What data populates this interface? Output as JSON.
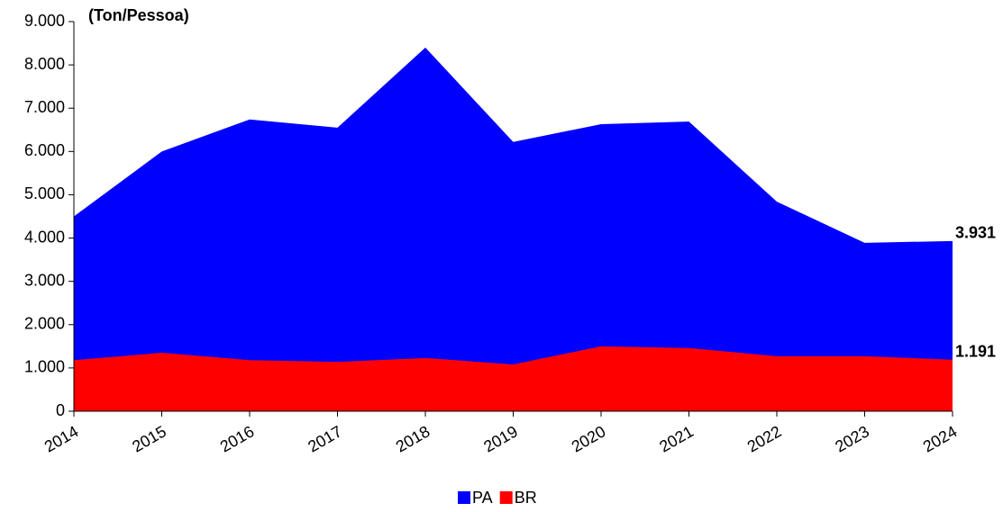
{
  "chart_data": {
    "type": "area",
    "y_axis_label": "(Ton/Pessoa)",
    "categories": [
      "2014",
      "2015",
      "2016",
      "2017",
      "2018",
      "2019",
      "2020",
      "2021",
      "2022",
      "2023",
      "2024"
    ],
    "series": [
      {
        "name": "PA",
        "color": "#0000ff",
        "values": [
          4500,
          6000,
          6740,
          6550,
          8400,
          6220,
          6630,
          6690,
          4840,
          3890,
          3931
        ],
        "value_labels": [
          null,
          null,
          null,
          null,
          null,
          null,
          null,
          null,
          null,
          null,
          "3.931"
        ]
      },
      {
        "name": "BR",
        "color": "#ff0000",
        "values": [
          1180,
          1350,
          1180,
          1140,
          1230,
          1080,
          1500,
          1460,
          1270,
          1270,
          1191
        ],
        "value_labels": [
          null,
          null,
          null,
          null,
          null,
          null,
          null,
          null,
          null,
          null,
          "1.191"
        ]
      }
    ],
    "ylim": [
      0,
      9000
    ],
    "yticks": [
      0,
      {
        "value": 1000,
        "label": "1.000"
      },
      {
        "value": 2000,
        "label": "2.000"
      },
      {
        "value": 3000,
        "label": "3.000"
      },
      {
        "value": 4000,
        "label": "4.000"
      },
      {
        "value": 5000,
        "label": "5.000"
      },
      {
        "value": 6000,
        "label": "6.000"
      },
      {
        "value": 7000,
        "label": "7.000"
      },
      {
        "value": 8000,
        "label": "8.000"
      },
      {
        "value": 9000,
        "label": "9.000"
      }
    ],
    "legend": "bottom"
  }
}
